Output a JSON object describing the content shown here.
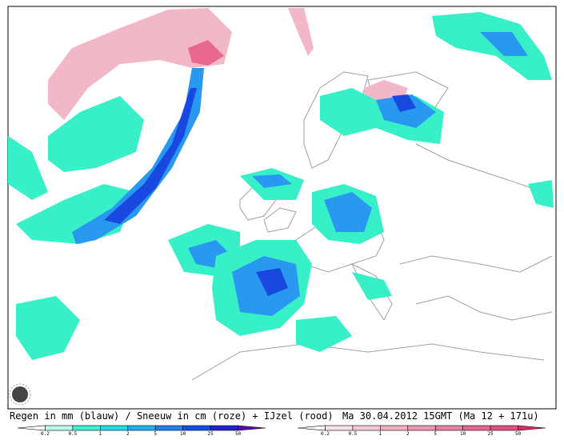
{
  "caption": {
    "left": "Regen in mm (blauw) / Sneeuw in cm (roze) + IJzel (rood)",
    "right": "Ma 30.04.2012 15GMT (Ma 12 + 171u)"
  },
  "legends": [
    {
      "colors": [
        "#ffffff",
        "#b8fff0",
        "#40f0d0",
        "#20d8e8",
        "#20b0f0",
        "#2080f0",
        "#1050e8",
        "#2020d0",
        "#5010b0"
      ],
      "labels": [
        "0.2",
        "0.5",
        "1",
        "2",
        "5",
        "10",
        "25",
        "50"
      ]
    },
    {
      "colors": [
        "#ffffff",
        "#f8e0e8",
        "#f4c8d4",
        "#f0b0c0",
        "#ec98b0",
        "#e880a0",
        "#e46890",
        "#e05080",
        "#d83060"
      ],
      "labels": [
        "0.2",
        "0.5",
        "1",
        "2",
        "5",
        "10",
        "25",
        "50"
      ]
    }
  ]
}
